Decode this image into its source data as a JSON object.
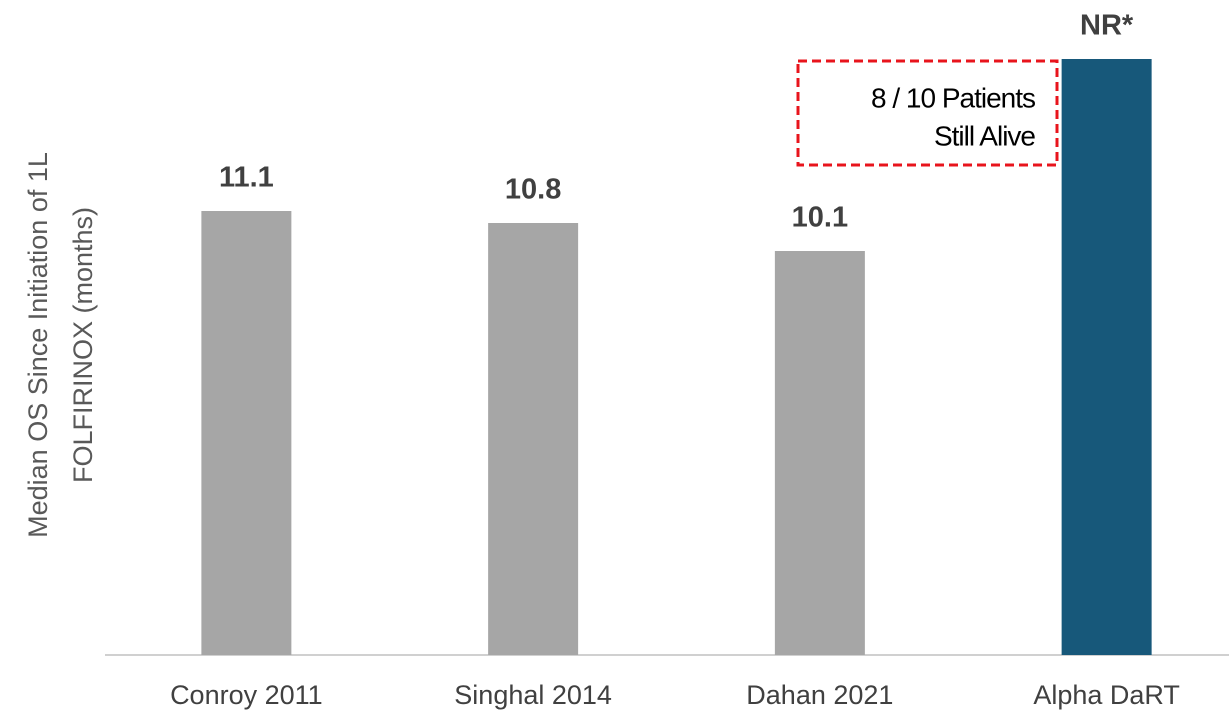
{
  "chart_data": {
    "type": "bar",
    "y_label": [
      "Median OS Since Initiation of 1L",
      "FOLFIRINOX  (months)"
    ],
    "categories": [
      "Conroy 2011",
      "Singhal 2014",
      "Dahan 2021",
      "Alpha DaRT"
    ],
    "values": [
      11.1,
      10.8,
      10.1,
      14.9
    ],
    "value_labels": [
      "11.1",
      "10.8",
      "10.1",
      "NR*"
    ],
    "colors": [
      "#a6a6a6",
      "#a6a6a6",
      "#a6a6a6",
      "#17587a"
    ],
    "ylim": [
      0,
      15
    ],
    "annotation": [
      "8 / 10 Patients",
      "Still Alive"
    ]
  }
}
